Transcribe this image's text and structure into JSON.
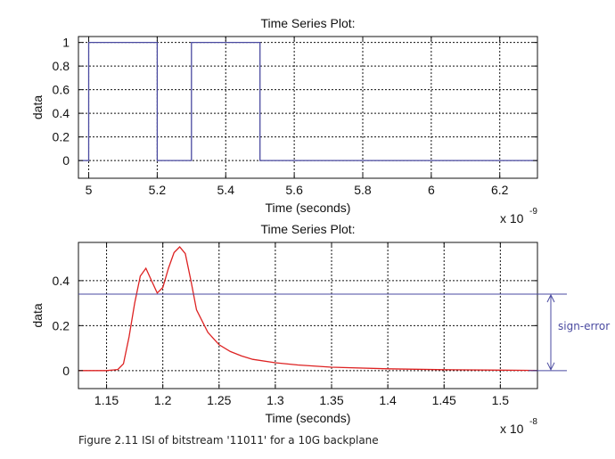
{
  "caption": "Figure 2.11 ISI of bitstream '11011' for a 10G backplane",
  "chart_data": [
    {
      "type": "line",
      "title": "Time Series Plot:",
      "xlabel": "Time (seconds)",
      "ylabel": "data",
      "x_multiplier": "x 10",
      "x_exponent": "-9",
      "xlim": [
        4.97,
        6.31
      ],
      "ylim": [
        -0.15,
        1.05
      ],
      "xticks": [
        5,
        5.2,
        5.4,
        5.6,
        5.8,
        6,
        6.2
      ],
      "xtick_labels": [
        "5",
        "5.2",
        "5.4",
        "5.6",
        "5.8",
        "6",
        "6.2"
      ],
      "yticks": [
        0,
        0.2,
        0.4,
        0.6,
        0.8,
        1
      ],
      "ytick_labels": [
        "0",
        "0.2",
        "0.4",
        "0.6",
        "0.8",
        "1"
      ],
      "grid": true,
      "color": "#4a4aa0",
      "series": [
        {
          "x": [
            4.97,
            5.0,
            5.0,
            5.2,
            5.2,
            5.3,
            5.3,
            5.5,
            5.5,
            6.31
          ],
          "y": [
            0,
            0,
            1,
            1,
            0,
            0,
            1,
            1,
            0,
            0
          ]
        }
      ]
    },
    {
      "type": "line",
      "title": "Time Series Plot:",
      "xlabel": "Time (seconds)",
      "ylabel": "data",
      "x_multiplier": "x 10",
      "x_exponent": "-8",
      "xlim": [
        1.125,
        1.533
      ],
      "ylim": [
        -0.08,
        0.57
      ],
      "xticks": [
        1.15,
        1.2,
        1.25,
        1.3,
        1.35,
        1.4,
        1.45,
        1.5
      ],
      "xtick_labels": [
        "1.15",
        "1.2",
        "1.25",
        "1.3",
        "1.35",
        "1.4",
        "1.45",
        "1.5"
      ],
      "yticks": [
        0,
        0.2,
        0.4
      ],
      "ytick_labels": [
        "0",
        "0.2",
        "0.4"
      ],
      "grid": true,
      "color": "#dd2222",
      "series": [
        {
          "x": [
            1.125,
            1.15,
            1.16,
            1.165,
            1.17,
            1.175,
            1.18,
            1.185,
            1.19,
            1.195,
            1.2,
            1.205,
            1.21,
            1.215,
            1.22,
            1.225,
            1.23,
            1.24,
            1.25,
            1.26,
            1.27,
            1.28,
            1.3,
            1.32,
            1.35,
            1.4,
            1.45,
            1.5,
            1.533
          ],
          "y": [
            0,
            0,
            0.005,
            0.03,
            0.15,
            0.3,
            0.42,
            0.455,
            0.4,
            0.345,
            0.37,
            0.455,
            0.525,
            0.55,
            0.52,
            0.4,
            0.27,
            0.17,
            0.115,
            0.085,
            0.065,
            0.05,
            0.035,
            0.025,
            0.015,
            0.008,
            0.004,
            0.002,
            0.001
          ]
        }
      ],
      "annotation": {
        "label": "sign-error",
        "y_top": 0.34,
        "y_bottom": 0,
        "color": "#4a4aa0"
      }
    }
  ]
}
